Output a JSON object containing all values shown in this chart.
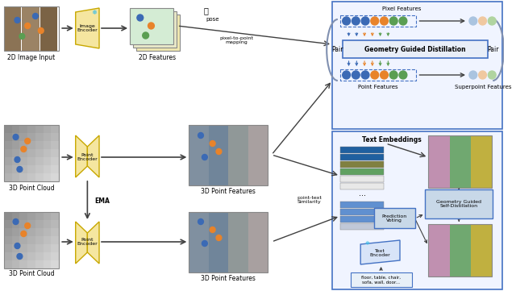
{
  "labels": {
    "2d_image_input": "2D Image Input",
    "3d_point_cloud_1": "3D Point Cloud",
    "3d_point_cloud_2": "3D Point Cloud",
    "2d_features": "2D Features",
    "3d_point_features_1": "3D Point Features",
    "3d_point_features_2": "3D Point Features",
    "pixel_features": "Pixel Features",
    "point_features": "Point Features",
    "superpoint_features": "Superpoint Features",
    "geometry_guided_distillation": "Geometry Guided Distillation",
    "pair_left": "Pair",
    "pair_right": "Pair",
    "pose": "pose",
    "pixel_to_point": "pixel-to-point\nmapping",
    "ema": "EMA",
    "text_embeddings": "Text Embeddings",
    "point_text_similarity": "point-text\nSimilarity",
    "prediction_voting": "Prediction\nVoting",
    "text_encoder": "Text\nEncoder",
    "text_categories": "floor, table, chair,\nsofa, wall, door...",
    "geometry_guided_self": "Geometry Guided\nSelf-Distillation"
  },
  "colors": {
    "blue": "#3b6ab5",
    "orange": "#e8832a",
    "green": "#5a9e52",
    "light_blue": "#aac4e0",
    "light_orange": "#f0c8a0",
    "light_green": "#b0d4a0",
    "arrow": "#404040",
    "encoder_fill": "#f5e6a0",
    "encoder_border": "#c8a800",
    "feature_map_top": "#d4ecd4",
    "feature_map_mid": "#e8e8c8",
    "feature_map_bot": "#f0e8b0",
    "distill_box_fill": "#e8eef8",
    "distill_box_border": "#4472c4",
    "border_color": "#4472c4",
    "outer_box_border": "#4472c4",
    "outer_box_fill": "#f0f4ff",
    "bottom_box_border": "#4472c4",
    "bottom_box_fill": "#f0f4ff",
    "text_emb_blue_dark": "#2060a0",
    "text_emb_blue_light": "#6090d0",
    "text_emb_olive": "#808040",
    "text_emb_green": "#60a060",
    "text_emb_white": "#f0f0f0",
    "text_box_fill": "#d8e8f8",
    "text_box_border": "#4472c4",
    "pred_box_fill": "#c8d8e8",
    "pred_box_border": "#4472c4",
    "geom_self_fill": "#c8d8e8",
    "geom_self_border": "#4472c4",
    "snowflake": "#40c0e8"
  }
}
